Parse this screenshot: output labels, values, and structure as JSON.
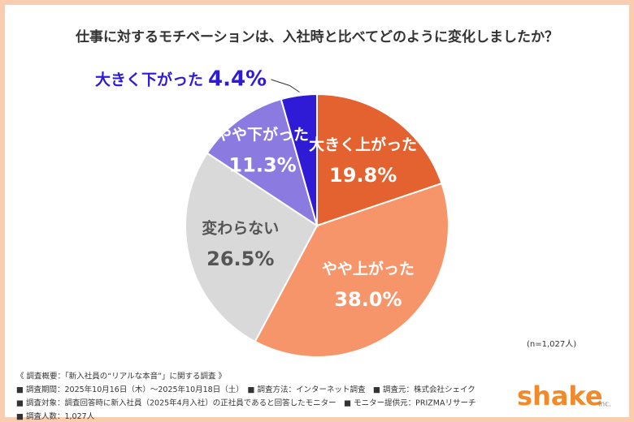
{
  "chart_data": {
    "type": "pie",
    "title": "仕事に対するモチベーションは、入社時と比べてどのように変化しましたか？",
    "categories": [
      "大きく上がった",
      "やや上がった",
      "変わらない",
      "やや下がった",
      "大きく下がった"
    ],
    "values": [
      19.8,
      38.0,
      26.5,
      11.3,
      4.4
    ],
    "value_labels": [
      "19.8%",
      "38.0%",
      "26.5%",
      "11.3%",
      "4.4%"
    ],
    "colors": [
      "#e4622f",
      "#f7956a",
      "#d9d9d9",
      "#8b7ae0",
      "#2f1bd6"
    ],
    "note": "(n=1,027人)",
    "footnotes": [
      "《 調査概要：「新入社員の“リアルな本音”」に関する調査 》",
      "■ 調査期間：2025年10月16日（木）〜2025年10月18日（土）　■ 調査方法：インターネット調査　■ 調査元：株式会社シェイク",
      "■ 調査対象：調査回答時に新入社員（2025年4月入社）の正社員であると回答したモニター　■ モニター提供元：PRIZMAリサーチ",
      "■ 調査人数：1,027人"
    ]
  },
  "logo": {
    "name": "shake",
    "suffix": "inc."
  }
}
